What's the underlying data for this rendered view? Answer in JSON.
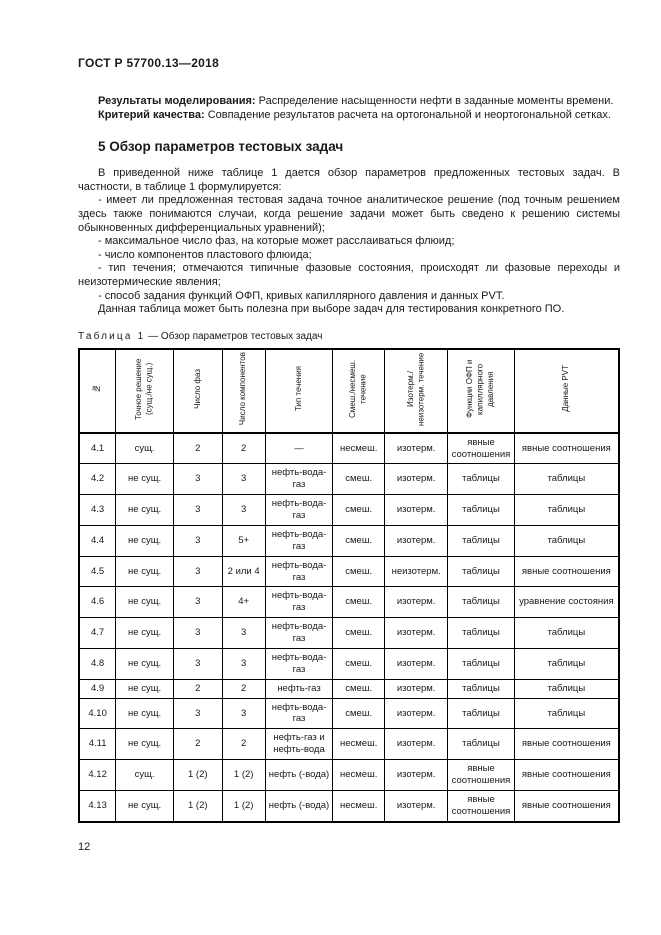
{
  "page": {
    "doc_header": "ГОСТ Р 57700.13—2018",
    "page_number": "12"
  },
  "paragraphs": {
    "results_label": "Результаты моделирования:",
    "results_text": "Распределение насыщенности нефти в заданные моменты времени.",
    "quality_label": "Критерий качества:",
    "quality_text": "Совпадение результатов расчета на ортогональной и неортогональной сетках."
  },
  "section": {
    "title": "5 Обзор параметров тестовых задач",
    "intro": "В приведенной ниже таблице 1 дается обзор параметров предложенных тестовых задач. В частности, в таблице 1 формулируется:",
    "bullets": [
      "- имеет ли предложенная тестовая задача точное аналитическое решение (под точным решением здесь также понимаются случаи, когда решение задачи может быть сведено к решению системы обыкновенных дифференциальных уравнений);",
      "- максимальное число фаз, на которые может расслаиваться флюид;",
      "- число компонентов пластового флюида;",
      "- тип течения; отмечаются типичные фазовые состояния, происходят ли фазовые переходы и неизотермические явления;",
      "- способ задания функций ОФП, кривых капиллярного давления и данных PVT."
    ],
    "outro": "Данная таблица может быть полезна при выборе задач для тестирования конкретного ПО."
  },
  "table": {
    "caption_label": "Таблица 1",
    "caption_rest": "— Обзор параметров тестовых задач",
    "columns": [
      "№",
      "Точное решение (сущ./не сущ.)",
      "Число фаз",
      "Число компонентов",
      "Тип течения",
      "Смеш./несмеш. течение",
      "Изотерм./ неизотерм. течение",
      "Функции ОФП и капиллярного давления",
      "Данные PVT"
    ],
    "rows": [
      [
        "4.1",
        "сущ.",
        "2",
        "2",
        "—",
        "несмеш.",
        "изотерм.",
        "явные соотношения",
        "явные соотношения"
      ],
      [
        "4.2",
        "не сущ.",
        "3",
        "3",
        "нефть-вода-газ",
        "смеш.",
        "изотерм.",
        "таблицы",
        "таблицы"
      ],
      [
        "4.3",
        "не сущ.",
        "3",
        "3",
        "нефть-вода-газ",
        "смеш.",
        "изотерм.",
        "таблицы",
        "таблицы"
      ],
      [
        "4.4",
        "не сущ.",
        "3",
        "5+",
        "нефть-вода-газ",
        "смеш.",
        "изотерм.",
        "таблицы",
        "таблицы"
      ],
      [
        "4.5",
        "не сущ.",
        "3",
        "2 или 4",
        "нефть-вода-газ",
        "смеш.",
        "неизотерм.",
        "таблицы",
        "явные соотношения"
      ],
      [
        "4.6",
        "не сущ.",
        "3",
        "4+",
        "нефть-вода-газ",
        "смеш.",
        "изотерм.",
        "таблицы",
        "уравнение состояния"
      ],
      [
        "4.7",
        "не сущ.",
        "3",
        "3",
        "нефть-вода-газ",
        "смеш.",
        "изотерм.",
        "таблицы",
        "таблицы"
      ],
      [
        "4.8",
        "не сущ.",
        "3",
        "3",
        "нефть-вода-газ",
        "смеш.",
        "изотерм.",
        "таблицы",
        "таблицы"
      ],
      [
        "4.9",
        "не сущ.",
        "2",
        "2",
        "нефть-газ",
        "смеш.",
        "изотерм.",
        "таблицы",
        "таблицы"
      ],
      [
        "4.10",
        "не сущ.",
        "3",
        "3",
        "нефть-вода-газ",
        "смеш.",
        "изотерм.",
        "таблицы",
        "таблицы"
      ],
      [
        "4.11",
        "не сущ.",
        "2",
        "2",
        "нефть-газ и нефть-вода",
        "несмеш.",
        "изотерм.",
        "таблицы",
        "явные соотношения"
      ],
      [
        "4.12",
        "сущ.",
        "1 (2)",
        "1 (2)",
        "нефть (-вода)",
        "несмеш.",
        "изотерм.",
        "явные соотношения",
        "явные соотношения"
      ],
      [
        "4.13",
        "не сущ.",
        "1 (2)",
        "1 (2)",
        "нефть (-вода)",
        "несмеш.",
        "изотерм.",
        "явные соотношения",
        "явные соотношения"
      ]
    ]
  }
}
